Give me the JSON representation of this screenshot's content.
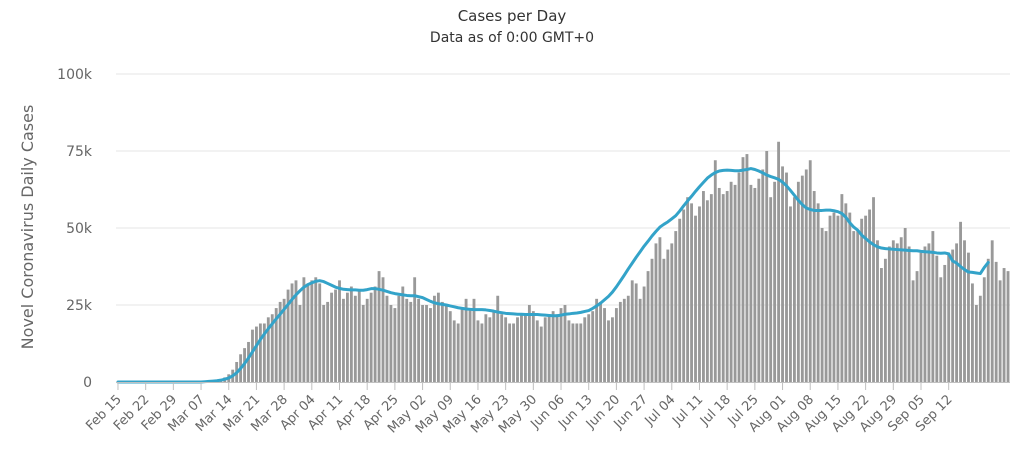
{
  "chart_data": {
    "type": "bar",
    "title": "Cases per Day",
    "subtitle": "Data as of 0:00 GMT+0",
    "ylabel": "Novel Coronavirus Daily Cases",
    "xlabel": "",
    "ylim": [
      0,
      100000
    ],
    "y_ticks": [
      {
        "value": 0,
        "label": "0"
      },
      {
        "value": 25000,
        "label": "25k"
      },
      {
        "value": 50000,
        "label": "50k"
      },
      {
        "value": 75000,
        "label": "75k"
      },
      {
        "value": 100000,
        "label": "100k"
      }
    ],
    "x_tick_labels": [
      "Feb 15",
      "Feb 22",
      "Feb 29",
      "Mar 07",
      "Mar 14",
      "Mar 21",
      "Mar 28",
      "Apr 04",
      "Apr 11",
      "Apr 18",
      "Apr 25",
      "May 02",
      "May 09",
      "May 16",
      "May 23",
      "May 30",
      "Jun 06",
      "Jun 13",
      "Jun 20",
      "Jun 27",
      "Jul 04",
      "Jul 11",
      "Jul 18",
      "Jul 25",
      "Aug 01",
      "Aug 08",
      "Aug 15",
      "Aug 22",
      "Aug 29",
      "Sep 05",
      "Sep 12"
    ],
    "grid": true,
    "legend": "none",
    "colors": {
      "bars": "#999999",
      "line": "#33a3c9",
      "grid": "#e6e6e6",
      "axis": "#c0c0c0"
    },
    "series": [
      {
        "kind": "bar",
        "start_date": "Feb 15",
        "values": [
          0,
          0,
          0,
          0,
          0,
          0,
          0,
          0,
          0,
          0,
          0,
          0,
          0,
          0,
          0,
          0,
          0,
          0,
          0,
          0,
          0,
          100,
          200,
          300,
          400,
          600,
          900,
          1500,
          2500,
          4000,
          6500,
          9000,
          11000,
          13000,
          17000,
          18000,
          19000,
          19000,
          21000,
          22000,
          24000,
          26000,
          27000,
          30000,
          32000,
          33000,
          25000,
          34000,
          32000,
          33000,
          34000,
          32000,
          25000,
          26000,
          29000,
          30000,
          33000,
          27000,
          29000,
          31000,
          28000,
          30000,
          25000,
          27000,
          29000,
          31000,
          36000,
          34000,
          28000,
          25000,
          24000,
          28000,
          31000,
          27000,
          26000,
          34000,
          27000,
          25000,
          25000,
          24000,
          28000,
          29000,
          26000,
          25000,
          23000,
          20000,
          19000,
          24000,
          27000,
          24000,
          27000,
          20000,
          19000,
          22000,
          21000,
          23000,
          28000,
          22000,
          21000,
          19000,
          19000,
          21000,
          22000,
          22000,
          25000,
          23000,
          20000,
          18000,
          21000,
          22000,
          23000,
          22000,
          24000,
          25000,
          20000,
          19000,
          19000,
          19000,
          21000,
          22000,
          23000,
          27000,
          26000,
          24000,
          20000,
          21000,
          24000,
          26000,
          27000,
          28000,
          33000,
          32000,
          27000,
          31000,
          36000,
          40000,
          45000,
          47000,
          40000,
          43000,
          45000,
          49000,
          53000,
          56000,
          60000,
          58000,
          54000,
          57000,
          62000,
          59000,
          61000,
          72000,
          63000,
          61000,
          62000,
          65000,
          64000,
          68000,
          73000,
          74000,
          64000,
          63000,
          66000,
          69000,
          75000,
          60000,
          65000,
          78000,
          70000,
          68000,
          57000,
          60000,
          65000,
          67000,
          69000,
          72000,
          62000,
          58000,
          50000,
          49000,
          54000,
          55000,
          54000,
          61000,
          58000,
          55000,
          49000,
          49000,
          53000,
          54000,
          56000,
          60000,
          46000,
          37000,
          40000,
          44000,
          46000,
          45000,
          47000,
          50000,
          44000,
          33000,
          36000,
          42000,
          44000,
          45000,
          49000,
          41000,
          34000,
          38000,
          42000,
          43000,
          45000,
          52000,
          46000,
          42000,
          32000,
          25000,
          28000,
          34000,
          40000,
          46000,
          39000,
          33000,
          37000,
          36000
        ]
      },
      {
        "kind": "line",
        "name": "",
        "start_date": "Feb 15",
        "values": [
          0,
          0,
          0,
          0,
          0,
          0,
          0,
          0,
          0,
          0,
          0,
          0,
          0,
          0,
          0,
          0,
          0,
          0,
          0,
          0,
          0,
          0,
          100,
          200,
          300,
          400,
          600,
          900,
          1300,
          2000,
          3000,
          4400,
          6000,
          7800,
          9800,
          11800,
          13800,
          15600,
          17300,
          18900,
          20500,
          22000,
          23600,
          25200,
          26800,
          28300,
          29600,
          30800,
          31600,
          32200,
          32700,
          32900,
          32600,
          32000,
          31400,
          30800,
          30400,
          30100,
          30000,
          29900,
          29900,
          29800,
          29800,
          30000,
          30300,
          30300,
          30100,
          29800,
          29400,
          29000,
          28700,
          28500,
          28300,
          28100,
          28000,
          28000,
          27700,
          27400,
          26800,
          26200,
          25700,
          25400,
          25200,
          25000,
          24700,
          24400,
          24100,
          23900,
          23700,
          23600,
          23500,
          23500,
          23500,
          23400,
          23200,
          23000,
          22700,
          22500,
          22300,
          22200,
          22100,
          22000,
          22000,
          21900,
          21900,
          21900,
          21900,
          21800,
          21700,
          21600,
          21500,
          21500,
          21700,
          22000,
          22100,
          22300,
          22400,
          22600,
          22900,
          23200,
          23900,
          24700,
          25600,
          26700,
          27800,
          29200,
          30900,
          32800,
          34700,
          36700,
          38600,
          40500,
          42300,
          44100,
          45700,
          47400,
          48900,
          50300,
          51200,
          52000,
          53000,
          54000,
          55500,
          57200,
          58800,
          60300,
          61900,
          63400,
          64800,
          66200,
          67200,
          68000,
          68500,
          68700,
          68800,
          68700,
          68600,
          68600,
          68800,
          69000,
          69300,
          69000,
          68500,
          67900,
          67200,
          66700,
          66300,
          65800,
          64900,
          63700,
          62200,
          60600,
          59000,
          57600,
          56500,
          56000,
          55700,
          55700,
          55700,
          55800,
          55800,
          55600,
          55300,
          54700,
          53500,
          51700,
          50300,
          49300,
          47700,
          46600,
          45500,
          44600,
          43900,
          43500,
          43300,
          43200,
          43100,
          43000,
          42900,
          42800,
          42700,
          42600,
          42600,
          42400,
          42300,
          42200,
          42100,
          41900,
          41800,
          41900,
          41600,
          39300,
          38600,
          37500,
          36500,
          35700,
          35600,
          35400,
          35200,
          37200,
          38800
        ]
      }
    ]
  }
}
